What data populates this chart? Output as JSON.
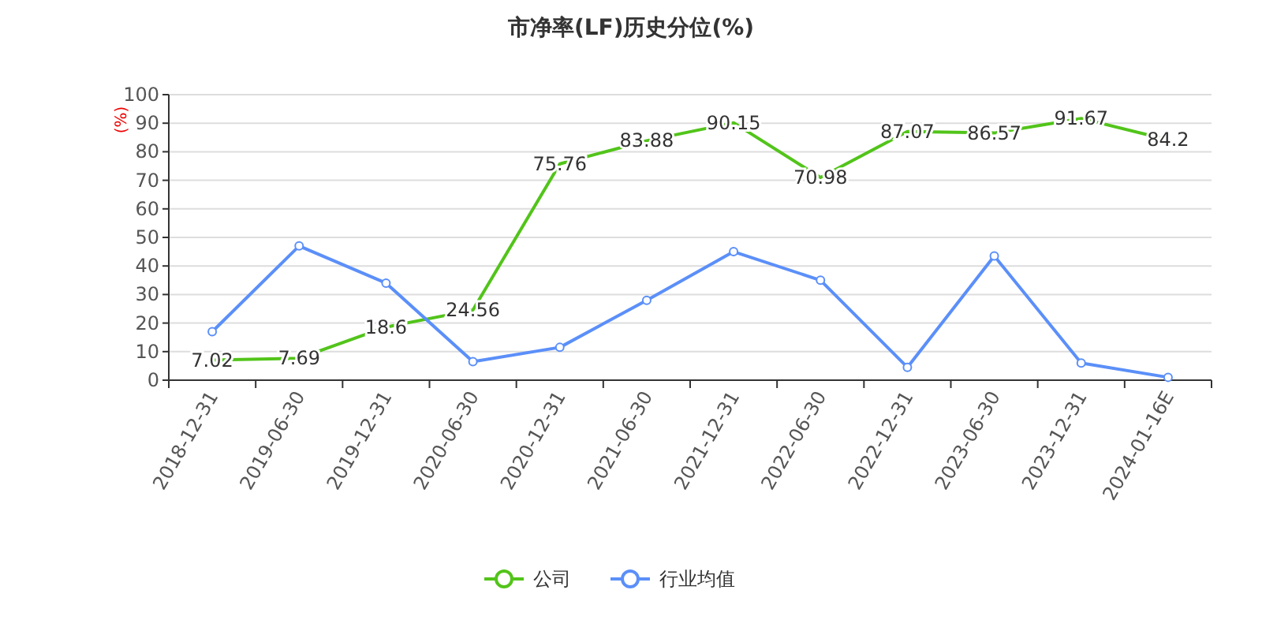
{
  "chart_data": {
    "type": "line",
    "title": "市净率(LF)历史分位(%)",
    "ylabel": "(%)",
    "categories": [
      "2018-12-31",
      "2019-06-30",
      "2019-12-31",
      "2020-06-30",
      "2020-12-31",
      "2021-06-30",
      "2021-12-31",
      "2022-06-30",
      "2022-12-31",
      "2023-06-30",
      "2023-12-31",
      "2024-01-16E"
    ],
    "series": [
      {
        "name": "公司",
        "color": "#52c41a",
        "marker": "none",
        "values": [
          7.02,
          7.69,
          18.6,
          24.56,
          75.76,
          83.88,
          90.15,
          70.98,
          87.07,
          86.57,
          91.67,
          84.2
        ],
        "value_labels": [
          "7.02",
          "7.69",
          "18.6",
          "24.56",
          "75.76",
          "83.88",
          "90.15",
          "70.98",
          "87.07",
          "86.57",
          "91.67",
          "84.2"
        ]
      },
      {
        "name": "行业均值",
        "color": "#5b8ff9",
        "marker": "circle",
        "values": [
          17,
          47,
          34,
          6.5,
          11.5,
          28,
          45,
          35,
          4.5,
          43.5,
          6,
          1
        ]
      }
    ],
    "ylim": [
      0,
      100
    ],
    "yticks": [
      0,
      10,
      20,
      30,
      40,
      50,
      60,
      70,
      80,
      90,
      100
    ],
    "grid": "y",
    "legend": "bottom"
  }
}
